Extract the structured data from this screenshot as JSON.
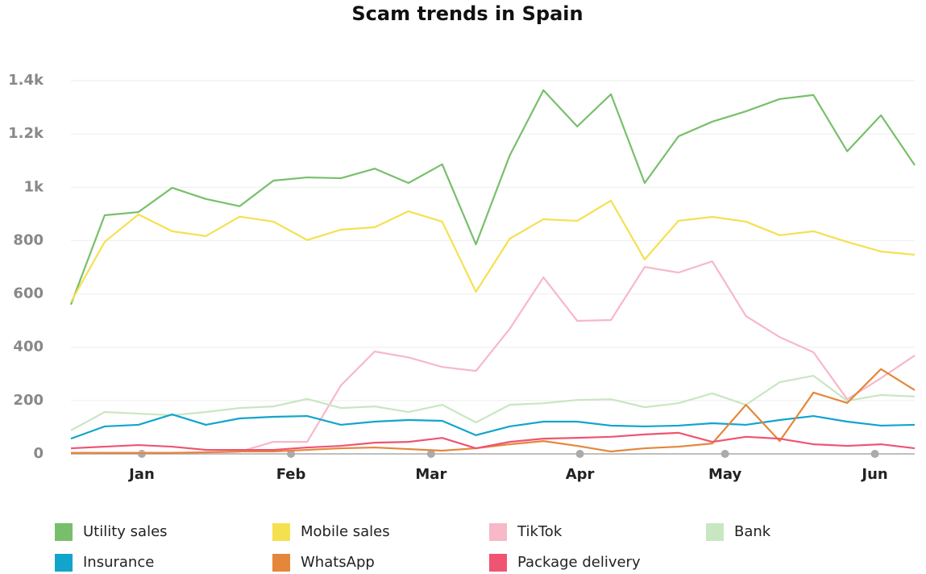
{
  "chart_data": {
    "type": "line",
    "title": "Scam trends in Spain",
    "categories": [
      null,
      null,
      null,
      null,
      null,
      null,
      null,
      null,
      null,
      null,
      null,
      null,
      null,
      null,
      null,
      null,
      null,
      null,
      null,
      null,
      null,
      null,
      null,
      null,
      null,
      null
    ],
    "xticks": [
      {
        "value": 2.1,
        "label": "Jan"
      },
      {
        "value": 6.52,
        "label": "Feb"
      },
      {
        "value": 10.67,
        "label": "Mar"
      },
      {
        "value": 15.08,
        "label": "Apr"
      },
      {
        "value": 19.38,
        "label": "May"
      },
      {
        "value": 23.82,
        "label": "Jun"
      }
    ],
    "ylim": [
      0,
      1400
    ],
    "yticks": [
      0,
      200,
      400,
      600,
      800,
      {
        "value": 1000,
        "label": "1k"
      },
      {
        "value": 1200,
        "label": "1.2k"
      },
      {
        "value": 1400,
        "label": "1.4k"
      }
    ],
    "grid": true,
    "legend": "bottom",
    "series": [
      {
        "name": "Utility sales",
        "color": "#78bf6b",
        "values": [
          560,
          895,
          907,
          998,
          956,
          929,
          1025,
          1037,
          1034,
          1070,
          1016,
          1086,
          786,
          1119,
          1364,
          1228,
          1349,
          1016,
          1191,
          1246,
          1285,
          1331,
          1346,
          1135,
          1270,
          1083
        ]
      },
      {
        "name": "Mobile sales",
        "color": "#f5e050",
        "values": [
          570,
          795,
          898,
          835,
          817,
          890,
          871,
          802,
          841,
          850,
          910,
          871,
          608,
          807,
          880,
          874,
          950,
          729,
          874,
          889,
          871,
          820,
          835,
          795,
          759,
          747
        ]
      },
      {
        "name": "TikTok",
        "color": "#f7b8c8",
        "values": [
          5,
          5,
          5,
          5,
          5,
          8,
          45,
          45,
          257,
          384,
          362,
          326,
          311,
          469,
          662,
          499,
          502,
          701,
          680,
          722,
          517,
          438,
          381,
          205,
          284,
          369
        ]
      },
      {
        "name": "Bank",
        "color": "#c9e6c3",
        "values": [
          88,
          157,
          151,
          145,
          157,
          172,
          178,
          206,
          172,
          178,
          157,
          184,
          118,
          184,
          190,
          202,
          205,
          175,
          190,
          227,
          184,
          269,
          293,
          199,
          221,
          215
        ]
      },
      {
        "name": "Insurance",
        "color": "#11a5cc",
        "values": [
          57,
          103,
          109,
          148,
          109,
          133,
          139,
          142,
          109,
          121,
          127,
          124,
          70,
          103,
          121,
          121,
          106,
          103,
          106,
          115,
          109,
          127,
          142,
          121,
          106,
          109
        ]
      },
      {
        "name": "WhatsApp",
        "color": "#e4873a",
        "values": [
          3,
          3,
          3,
          3,
          6,
          9,
          9,
          15,
          21,
          24,
          18,
          12,
          21,
          36,
          48,
          30,
          9,
          21,
          27,
          39,
          184,
          48,
          230,
          191,
          318,
          239
        ]
      },
      {
        "name": "Package delivery",
        "color": "#ef5473",
        "values": [
          21,
          27,
          33,
          27,
          15,
          15,
          15,
          24,
          30,
          42,
          45,
          60,
          21,
          45,
          57,
          60,
          64,
          73,
          79,
          45,
          64,
          57,
          36,
          30,
          36,
          21
        ]
      }
    ]
  }
}
